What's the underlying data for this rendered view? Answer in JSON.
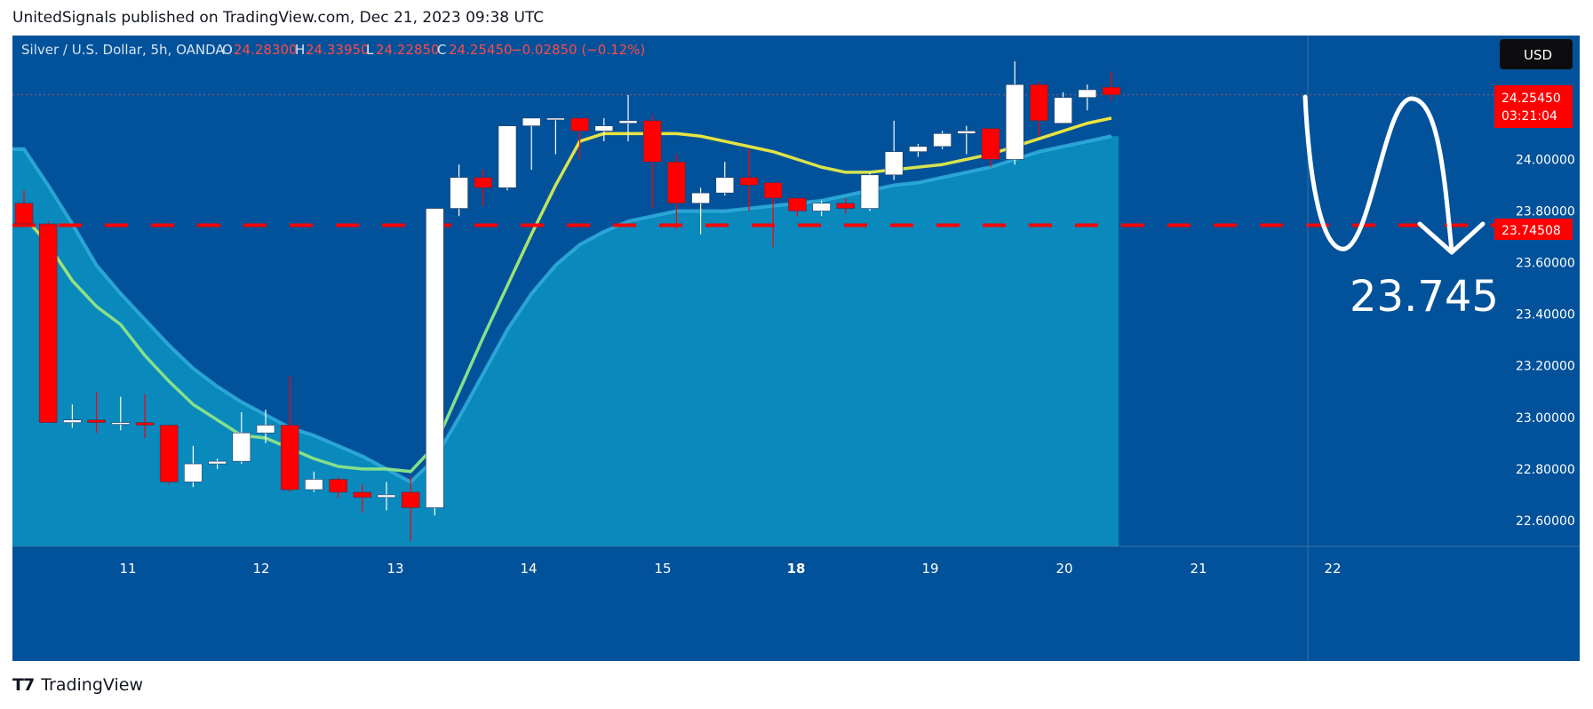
{
  "header": {
    "published": "UnitedSignals published on TradingView.com, Dec 21, 2023 09:38 UTC"
  },
  "legend": {
    "symbol": "Silver / U.S. Dollar, 5h, OANDA",
    "o_label": "O",
    "o_value": "24.28300",
    "h_label": "H",
    "h_value": "24.33950",
    "l_label": "L",
    "l_value": "24.22850",
    "c_label": "C",
    "c_value": "24.25450",
    "change": "−0.02850 (−0.12%)"
  },
  "currency_button": "USD",
  "price_tag": {
    "price": "24.25450",
    "countdown": "03:21:04"
  },
  "level_tag": "23.74508",
  "annotation": "23.745",
  "footer": {
    "brand": "TradingView"
  },
  "colors": {
    "background": "#01529a",
    "area": "#0a89bd",
    "area_line": "#33b3df",
    "ema": "#f2e43a",
    "ema_low": "#86e08a",
    "up_candle": "#ffffff",
    "down_candle": "#ff0000",
    "level_line": "#ff0000",
    "axis_text": "#ffffff"
  },
  "chart_data": {
    "type": "candlestick",
    "symbol": "Silver / U.S. Dollar",
    "timeframe": "5h",
    "ylim": [
      22.5,
      24.48
    ],
    "y_ticks": [
      "24.00000",
      "23.80000",
      "23.60000",
      "23.40000",
      "23.20000",
      "23.00000",
      "22.80000",
      "22.60000"
    ],
    "x_ticks": [
      "11",
      "12",
      "13",
      "14",
      "15",
      "18",
      "19",
      "20",
      "21",
      "22"
    ],
    "horizontal_level": 23.745,
    "candles": [
      {
        "o": 23.83,
        "h": 23.88,
        "l": 23.74,
        "c": 23.75
      },
      {
        "o": 23.75,
        "h": 23.76,
        "l": 22.98,
        "c": 22.98
      },
      {
        "o": 22.98,
        "h": 23.05,
        "l": 22.96,
        "c": 22.99
      },
      {
        "o": 22.99,
        "h": 23.1,
        "l": 22.94,
        "c": 22.98
      },
      {
        "o": 22.98,
        "h": 23.08,
        "l": 22.95,
        "c": 22.98
      },
      {
        "o": 22.98,
        "h": 23.09,
        "l": 22.92,
        "c": 22.97
      },
      {
        "o": 22.97,
        "h": 22.97,
        "l": 22.74,
        "c": 22.75
      },
      {
        "o": 22.75,
        "h": 22.89,
        "l": 22.73,
        "c": 22.82
      },
      {
        "o": 22.82,
        "h": 22.84,
        "l": 22.8,
        "c": 22.83
      },
      {
        "o": 22.83,
        "h": 23.02,
        "l": 22.82,
        "c": 22.94
      },
      {
        "o": 22.94,
        "h": 23.03,
        "l": 22.9,
        "c": 22.97
      },
      {
        "o": 22.97,
        "h": 23.16,
        "l": 22.71,
        "c": 22.72
      },
      {
        "o": 22.72,
        "h": 22.79,
        "l": 22.71,
        "c": 22.76
      },
      {
        "o": 22.76,
        "h": 22.77,
        "l": 22.69,
        "c": 22.71
      },
      {
        "o": 22.71,
        "h": 22.74,
        "l": 22.63,
        "c": 22.69
      },
      {
        "o": 22.69,
        "h": 22.75,
        "l": 22.64,
        "c": 22.7
      },
      {
        "o": 22.71,
        "h": 22.77,
        "l": 22.52,
        "c": 22.65
      },
      {
        "o": 22.65,
        "h": 23.81,
        "l": 22.62,
        "c": 23.81
      },
      {
        "o": 23.81,
        "h": 23.98,
        "l": 23.78,
        "c": 23.93
      },
      {
        "o": 23.93,
        "h": 23.96,
        "l": 23.82,
        "c": 23.89
      },
      {
        "o": 23.89,
        "h": 24.13,
        "l": 23.88,
        "c": 24.13
      },
      {
        "o": 24.13,
        "h": 24.16,
        "l": 23.96,
        "c": 24.16
      },
      {
        "o": 24.16,
        "h": 24.16,
        "l": 24.02,
        "c": 24.16
      },
      {
        "o": 24.16,
        "h": 24.16,
        "l": 24.0,
        "c": 24.11
      },
      {
        "o": 24.11,
        "h": 24.16,
        "l": 24.07,
        "c": 24.13
      },
      {
        "o": 24.14,
        "h": 24.25,
        "l": 24.07,
        "c": 24.15
      },
      {
        "o": 24.15,
        "h": 24.17,
        "l": 23.81,
        "c": 23.99
      },
      {
        "o": 23.99,
        "h": 24.02,
        "l": 23.73,
        "c": 23.83
      },
      {
        "o": 23.83,
        "h": 23.89,
        "l": 23.71,
        "c": 23.87
      },
      {
        "o": 23.87,
        "h": 23.99,
        "l": 23.86,
        "c": 23.93
      },
      {
        "o": 23.93,
        "h": 24.04,
        "l": 23.8,
        "c": 23.9
      },
      {
        "o": 23.91,
        "h": 23.91,
        "l": 23.66,
        "c": 23.85
      },
      {
        "o": 23.85,
        "h": 23.85,
        "l": 23.78,
        "c": 23.8
      },
      {
        "o": 23.8,
        "h": 23.84,
        "l": 23.78,
        "c": 23.83
      },
      {
        "o": 23.83,
        "h": 23.85,
        "l": 23.79,
        "c": 23.81
      },
      {
        "o": 23.81,
        "h": 23.95,
        "l": 23.8,
        "c": 23.94
      },
      {
        "o": 23.94,
        "h": 24.15,
        "l": 23.92,
        "c": 24.03
      },
      {
        "o": 24.03,
        "h": 24.06,
        "l": 24.01,
        "c": 24.05
      },
      {
        "o": 24.05,
        "h": 24.11,
        "l": 24.04,
        "c": 24.1
      },
      {
        "o": 24.1,
        "h": 24.13,
        "l": 24.02,
        "c": 24.11
      },
      {
        "o": 24.12,
        "h": 24.12,
        "l": 23.97,
        "c": 24.0
      },
      {
        "o": 24.0,
        "h": 24.38,
        "l": 23.98,
        "c": 24.29
      },
      {
        "o": 24.29,
        "h": 24.3,
        "l": 24.09,
        "c": 24.15
      },
      {
        "o": 24.14,
        "h": 24.26,
        "l": 24.14,
        "c": 24.24
      },
      {
        "o": 24.24,
        "h": 24.29,
        "l": 24.19,
        "c": 24.27
      },
      {
        "o": 24.28,
        "h": 24.34,
        "l": 24.23,
        "c": 24.25
      }
    ],
    "ema_fast": [
      23.78,
      23.67,
      23.53,
      23.43,
      23.36,
      23.24,
      23.14,
      23.05,
      22.99,
      22.93,
      22.92,
      22.88,
      22.84,
      22.81,
      22.8,
      22.8,
      22.79,
      22.89,
      23.1,
      23.31,
      23.51,
      23.71,
      23.9,
      24.07,
      24.1,
      24.1,
      24.1,
      24.1,
      24.09,
      24.07,
      24.05,
      24.03,
      24.0,
      23.97,
      23.95,
      23.95,
      23.96,
      23.97,
      23.98,
      24.0,
      24.02,
      24.05,
      24.08,
      24.11,
      24.14,
      24.16
    ],
    "band_upper": [
      24.04,
      23.9,
      23.75,
      23.59,
      23.48,
      23.38,
      23.28,
      23.19,
      23.12,
      23.06,
      23.01,
      22.96,
      22.93,
      22.89,
      22.85,
      22.8,
      22.75,
      22.84,
      23.0,
      23.17,
      23.34,
      23.48,
      23.59,
      23.67,
      23.72,
      23.76,
      23.78,
      23.8,
      23.8,
      23.8,
      23.81,
      23.82,
      23.83,
      23.84,
      23.86,
      23.88,
      23.9,
      23.91,
      23.93,
      23.95,
      23.97,
      24.0,
      24.03,
      24.05,
      24.07,
      24.09
    ]
  }
}
